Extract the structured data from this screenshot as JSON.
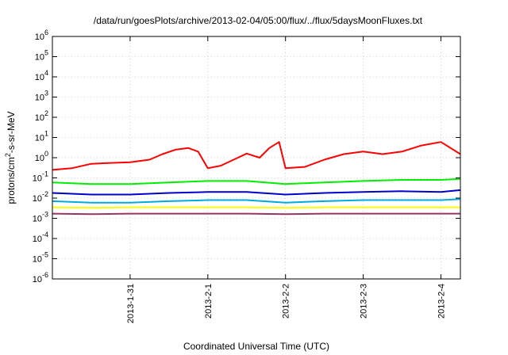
{
  "chart_data": {
    "type": "line",
    "title": "/data/run/goesPlots/archive/2013-02-04/05:00/flux/../flux/5daysMoonFluxes.txt",
    "xlabel": "Coordinated Universal Time (UTC)",
    "ylabel": {
      "pre": "protons/cm",
      "sup": "2",
      "post": "-s-sr-MeV"
    },
    "y_scale": "log",
    "ylim": [
      1e-06,
      1000000.0
    ],
    "xlim": [
      "2013-01-30T00:00",
      "2013-02-04T06:00"
    ],
    "grid": true,
    "legend": "none",
    "y_ticks": [
      {
        "value": 1e-06,
        "base": "10",
        "exp": "-6"
      },
      {
        "value": 1e-05,
        "base": "10",
        "exp": "-5"
      },
      {
        "value": 0.0001,
        "base": "10",
        "exp": "-4"
      },
      {
        "value": 0.001,
        "base": "10",
        "exp": "-3"
      },
      {
        "value": 0.01,
        "base": "10",
        "exp": "-2"
      },
      {
        "value": 0.1,
        "base": "10",
        "exp": "-1"
      },
      {
        "value": 1.0,
        "base": "10",
        "exp": "0"
      },
      {
        "value": 10.0,
        "base": "10",
        "exp": "1"
      },
      {
        "value": 100.0,
        "base": "10",
        "exp": "2"
      },
      {
        "value": 1000.0,
        "base": "10",
        "exp": "3"
      },
      {
        "value": 10000.0,
        "base": "10",
        "exp": "4"
      },
      {
        "value": 100000.0,
        "base": "10",
        "exp": "5"
      },
      {
        "value": 1000000.0,
        "base": "10",
        "exp": "6"
      }
    ],
    "x_ticks": [
      {
        "date": "2013-01-31T00:00",
        "label": "2013-1-31"
      },
      {
        "date": "2013-02-01T00:00",
        "label": "2013-2-1"
      },
      {
        "date": "2013-02-02T00:00",
        "label": "2013-2-2"
      },
      {
        "date": "2013-02-03T00:00",
        "label": "2013-2-3"
      },
      {
        "date": "2013-02-04T00:00",
        "label": "2013-2-4"
      }
    ],
    "series": [
      {
        "color": "#ff0000",
        "x": [
          "2013-01-30T00:00",
          "2013-01-30T06:00",
          "2013-01-30T12:00",
          "2013-01-30T18:00",
          "2013-01-31T00:00",
          "2013-01-31T06:00",
          "2013-01-31T10:00",
          "2013-01-31T14:00",
          "2013-01-31T18:00",
          "2013-01-31T21:00",
          "2013-02-01T00:00",
          "2013-02-01T04:00",
          "2013-02-01T08:00",
          "2013-02-01T12:00",
          "2013-02-01T16:00",
          "2013-02-01T19:00",
          "2013-02-01T22:00",
          "2013-02-02T00:00",
          "2013-02-02T06:00",
          "2013-02-02T12:00",
          "2013-02-02T18:00",
          "2013-02-03T00:00",
          "2013-02-03T06:00",
          "2013-02-03T12:00",
          "2013-02-03T18:00",
          "2013-02-04T00:00",
          "2013-02-04T06:00"
        ],
        "y": [
          0.25,
          0.3,
          0.5,
          0.55,
          0.6,
          0.8,
          1.5,
          2.5,
          3.0,
          2.0,
          0.3,
          0.4,
          0.8,
          1.6,
          1.0,
          3.0,
          6.0,
          0.3,
          0.35,
          0.8,
          1.5,
          2.0,
          1.5,
          2.0,
          4.0,
          6.0,
          1.5
        ]
      },
      {
        "color": "#00ee00",
        "x": [
          "2013-01-30T00:00",
          "2013-01-30T12:00",
          "2013-01-31T00:00",
          "2013-01-31T12:00",
          "2013-02-01T00:00",
          "2013-02-01T12:00",
          "2013-02-02T00:00",
          "2013-02-02T12:00",
          "2013-02-03T00:00",
          "2013-02-03T12:00",
          "2013-02-04T00:00",
          "2013-02-04T06:00"
        ],
        "y": [
          0.06,
          0.05,
          0.05,
          0.06,
          0.07,
          0.07,
          0.05,
          0.06,
          0.07,
          0.08,
          0.08,
          0.09
        ]
      },
      {
        "color": "#0000cc",
        "x": [
          "2013-01-30T00:00",
          "2013-01-30T12:00",
          "2013-01-31T00:00",
          "2013-01-31T12:00",
          "2013-02-01T00:00",
          "2013-02-01T12:00",
          "2013-02-02T00:00",
          "2013-02-02T12:00",
          "2013-02-03T00:00",
          "2013-02-03T12:00",
          "2013-02-04T00:00",
          "2013-02-04T06:00"
        ],
        "y": [
          0.018,
          0.015,
          0.015,
          0.018,
          0.02,
          0.02,
          0.015,
          0.018,
          0.02,
          0.022,
          0.02,
          0.025
        ]
      },
      {
        "color": "#00aadd",
        "x": [
          "2013-01-30T00:00",
          "2013-01-30T12:00",
          "2013-01-31T00:00",
          "2013-01-31T12:00",
          "2013-02-01T00:00",
          "2013-02-01T12:00",
          "2013-02-02T00:00",
          "2013-02-02T12:00",
          "2013-02-03T00:00",
          "2013-02-03T12:00",
          "2013-02-04T00:00",
          "2013-02-04T06:00"
        ],
        "y": [
          0.007,
          0.006,
          0.006,
          0.007,
          0.008,
          0.008,
          0.006,
          0.007,
          0.008,
          0.008,
          0.008,
          0.009
        ]
      },
      {
        "color": "#ffff00",
        "x": [
          "2013-01-30T00:00",
          "2013-01-30T12:00",
          "2013-01-31T00:00",
          "2013-01-31T12:00",
          "2013-02-01T00:00",
          "2013-02-01T12:00",
          "2013-02-02T00:00",
          "2013-02-02T12:00",
          "2013-02-03T00:00",
          "2013-02-03T12:00",
          "2013-02-04T00:00",
          "2013-02-04T06:00"
        ],
        "y": [
          0.0035,
          0.0033,
          0.0035,
          0.0035,
          0.0035,
          0.0035,
          0.0033,
          0.0035,
          0.0035,
          0.0035,
          0.0035,
          0.0035
        ]
      },
      {
        "color": "#993366",
        "x": [
          "2013-01-30T00:00",
          "2013-01-30T12:00",
          "2013-01-31T00:00",
          "2013-01-31T12:00",
          "2013-02-01T00:00",
          "2013-02-01T12:00",
          "2013-02-02T00:00",
          "2013-02-02T12:00",
          "2013-02-03T00:00",
          "2013-02-03T12:00",
          "2013-02-04T00:00",
          "2013-02-04T06:00"
        ],
        "y": [
          0.0017,
          0.0016,
          0.0017,
          0.0017,
          0.0017,
          0.0017,
          0.0016,
          0.0017,
          0.0017,
          0.0017,
          0.0017,
          0.0017
        ]
      }
    ]
  }
}
